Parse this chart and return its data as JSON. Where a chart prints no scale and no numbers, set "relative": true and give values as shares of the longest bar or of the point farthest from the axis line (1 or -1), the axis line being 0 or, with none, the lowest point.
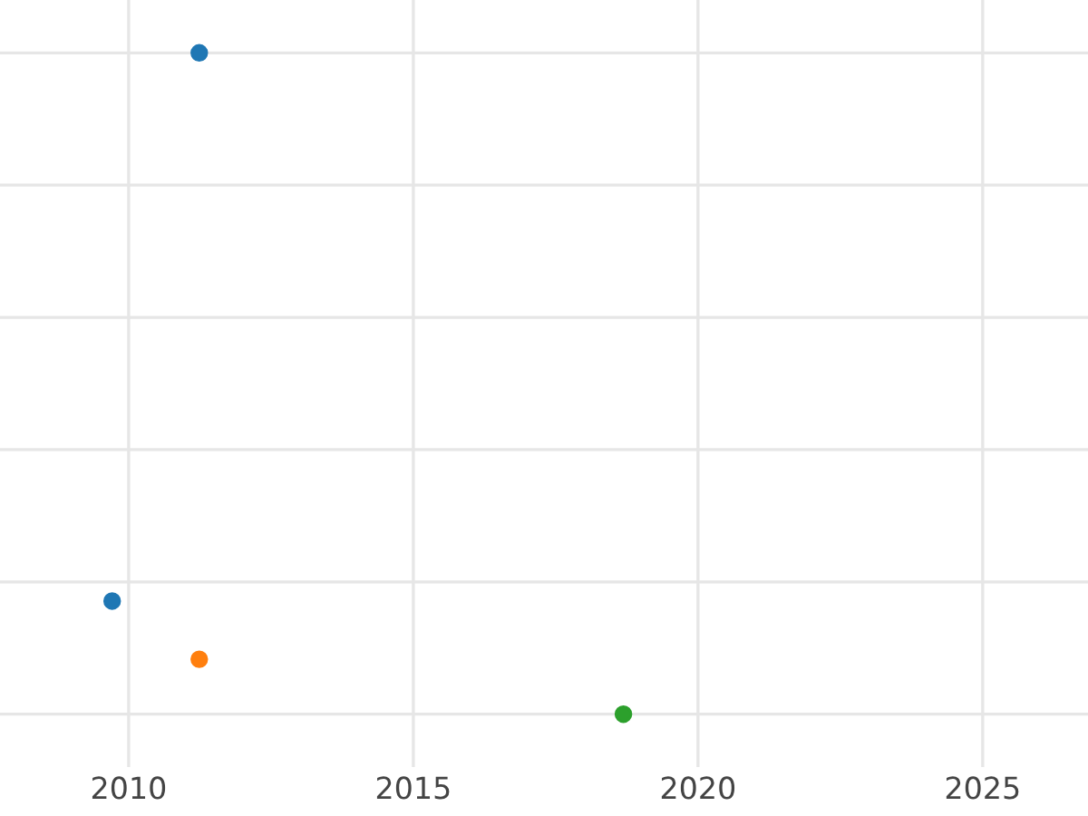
{
  "chart_data": {
    "type": "scatter",
    "relative": true,
    "xlim": [
      2007.74,
      2026.85
    ],
    "xticks": [
      2010,
      2015,
      2020,
      2025
    ],
    "tick_labels": "x",
    "grid": true,
    "marker": "circle",
    "series": [
      {
        "color": "#1f77b4",
        "x": [
          2011.24,
          2009.71
        ],
        "values": [
          1,
          0.171
        ]
      },
      {
        "color": "#ff7f0e",
        "x": [
          2011.24
        ],
        "values": [
          0.083
        ]
      },
      {
        "color": "#2ca02c",
        "x": [
          2018.69
        ],
        "values": [
          0
        ]
      }
    ]
  }
}
